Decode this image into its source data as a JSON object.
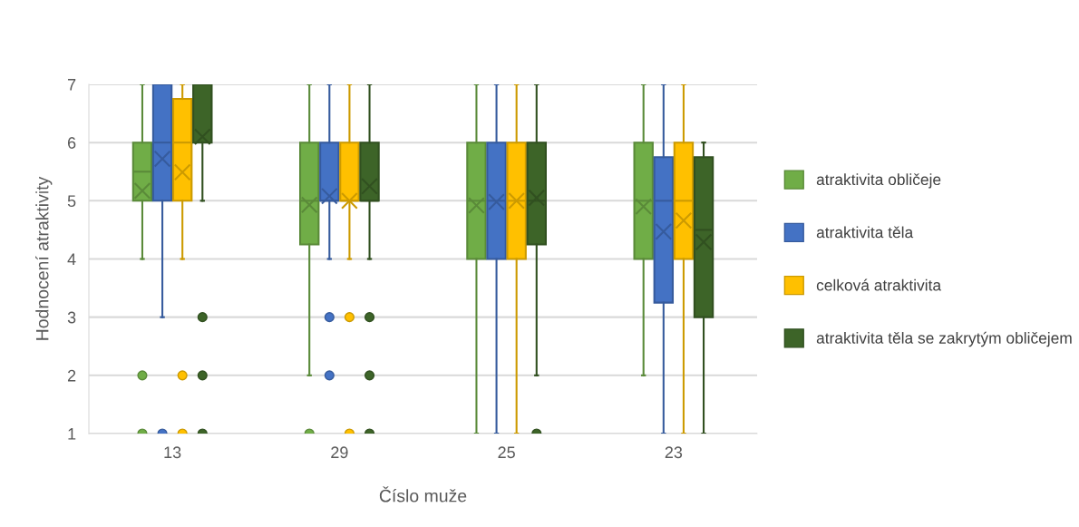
{
  "chart_data": {
    "type": "box",
    "xlabel": "Číslo muže",
    "ylabel": "Hodnocení atraktivity",
    "categories": [
      "13",
      "29",
      "25",
      "23"
    ],
    "ylim": [
      1,
      7
    ],
    "yticks": [
      1,
      2,
      3,
      4,
      5,
      6,
      7
    ],
    "grid": "y",
    "legend": "right",
    "marker": "cross",
    "series": [
      {
        "name": "atraktivita obličeje",
        "color": "#70ad47",
        "boxes": [
          {
            "low": 4,
            "q1": 5,
            "median": 5.5,
            "q3": 6,
            "high": 7,
            "mean": 5.17,
            "outliers": [
              2,
              1
            ]
          },
          {
            "low": 2,
            "q1": 4.25,
            "median": 5,
            "q3": 6,
            "high": 7,
            "mean": 4.93,
            "outliers": [
              1
            ]
          },
          {
            "low": 1,
            "q1": 4,
            "median": 5,
            "q3": 6,
            "high": 7,
            "mean": 4.92
          },
          {
            "low": 2,
            "q1": 4,
            "median": 5,
            "q3": 6,
            "high": 7,
            "mean": 4.9
          }
        ]
      },
      {
        "name": "atraktivita těla",
        "color": "#4472c4",
        "boxes": [
          {
            "low": 3,
            "q1": 5,
            "median": 6,
            "q3": 7,
            "high": 7,
            "mean": 5.72,
            "outliers": [
              1
            ]
          },
          {
            "low": 4,
            "q1": 5,
            "median": 5,
            "q3": 6,
            "high": 7,
            "mean": 5.08,
            "outliers": [
              3,
              2
            ]
          },
          {
            "low": 1,
            "q1": 4,
            "median": 5,
            "q3": 6,
            "high": 7,
            "mean": 4.98
          },
          {
            "low": 1,
            "q1": 3.25,
            "median": 5,
            "q3": 5.75,
            "high": 7,
            "mean": 4.47
          }
        ]
      },
      {
        "name": "celková atraktivita",
        "color": "#ffc000",
        "boxes": [
          {
            "low": 4,
            "q1": 5,
            "median": 6,
            "q3": 6.75,
            "high": 7,
            "mean": 5.49,
            "outliers": [
              2,
              1
            ]
          },
          {
            "low": 4,
            "q1": 5,
            "median": 5,
            "q3": 6,
            "high": 7,
            "mean": 5.0,
            "outliers": [
              3,
              1
            ]
          },
          {
            "low": 1,
            "q1": 4,
            "median": 5,
            "q3": 6,
            "high": 7,
            "mean": 5.0
          },
          {
            "low": 1,
            "q1": 4,
            "median": 5,
            "q3": 6,
            "high": 7,
            "mean": 4.66
          }
        ]
      },
      {
        "name": "atraktivita těla se zakrytým obličejem",
        "color": "#3d6428",
        "boxes": [
          {
            "low": 5,
            "q1": 6,
            "median": 7,
            "q3": 7,
            "high": 7,
            "mean": 6.1,
            "outliers": [
              3,
              2,
              1
            ]
          },
          {
            "low": 4,
            "q1": 5,
            "median": 5,
            "q3": 6,
            "high": 7,
            "mean": 5.25,
            "outliers": [
              3,
              2,
              1
            ]
          },
          {
            "low": 2,
            "q1": 4.25,
            "median": 5,
            "q3": 6,
            "high": 7,
            "mean": 5.05,
            "outliers": [
              1
            ]
          },
          {
            "low": 1,
            "q1": 3,
            "median": 4.5,
            "q3": 5.75,
            "high": 6,
            "mean": 4.29
          }
        ]
      }
    ]
  }
}
